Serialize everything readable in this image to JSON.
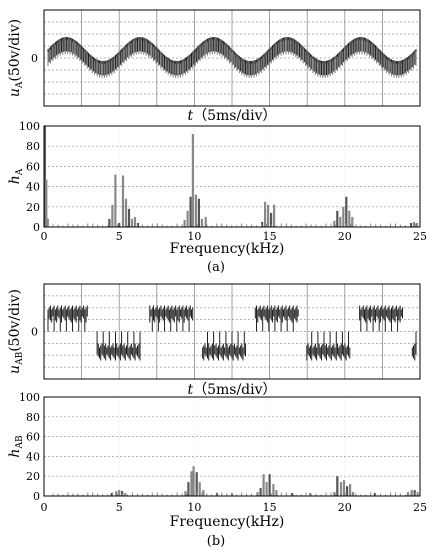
{
  "chart_data": [
    {
      "id": "a1",
      "type": "line",
      "ylabel": "uA(50v/div)",
      "ylabel_parts": {
        "italic": "u",
        "sub": "A",
        "rest": "(50v/div)"
      },
      "xlabel": "t（5ms/div）",
      "xlabel_parts": {
        "italic": "t",
        "rest": "（5ms/div）"
      },
      "y_tick_labels": [
        "0"
      ],
      "x_divisions": 10,
      "y_divisions": 8,
      "grid": true,
      "waveform": {
        "kind": "pwm-sine",
        "fundamental_cycles": 5,
        "amplitude_div": 1,
        "band_div": 0.75
      }
    },
    {
      "id": "a2",
      "type": "bar",
      "ylabel": "hA",
      "ylabel_parts": {
        "italic": "h",
        "sub": "A"
      },
      "xlabel": "Frequency(kHz)",
      "xlim": [
        0,
        25
      ],
      "ylim": [
        0,
        100
      ],
      "x_ticks": [
        0,
        5,
        10,
        15,
        20,
        25
      ],
      "y_ticks": [
        0,
        20,
        40,
        60,
        80,
        100
      ],
      "grid": "horizontal-dashed",
      "x": [
        0.05,
        0.15,
        0.25,
        4.35,
        4.55,
        4.75,
        5.0,
        5.25,
        5.45,
        5.65,
        5.85,
        6.05,
        6.25,
        9.35,
        9.55,
        9.75,
        9.9,
        10.1,
        10.3,
        10.5,
        10.75,
        14.5,
        14.7,
        14.9,
        15.1,
        15.3,
        19.3,
        19.5,
        19.7,
        19.9,
        20.1,
        20.3,
        20.5,
        24.4,
        24.6,
        24.8
      ],
      "values": [
        100,
        47,
        8,
        8,
        22,
        52,
        4,
        51,
        28,
        18,
        8,
        10,
        4,
        7,
        16,
        30,
        92,
        32,
        28,
        8,
        10,
        5,
        25,
        22,
        14,
        22,
        6,
        16,
        10,
        20,
        30,
        16,
        10,
        4,
        5,
        4
      ]
    },
    {
      "id": "b1",
      "type": "line",
      "ylabel": "uAB(50v/div)",
      "ylabel_parts": {
        "italic": "u",
        "sub": "AB",
        "rest": "(50v/div)"
      },
      "xlabel": "t（5ms/div）",
      "xlabel_parts": {
        "italic": "t",
        "rest": "（5ms/div）"
      },
      "y_tick_labels": [
        "0"
      ],
      "x_divisions": 10,
      "y_divisions": 8,
      "grid": true,
      "waveform": {
        "kind": "pwm-square",
        "fundamental_cycles": 3.5,
        "amplitude_div": 1.6
      }
    },
    {
      "id": "b2",
      "type": "bar",
      "ylabel": "hAB",
      "ylabel_parts": {
        "italic": "h",
        "sub": "AB"
      },
      "xlabel": "Frequency(kHz)",
      "xlim": [
        0,
        25
      ],
      "ylim": [
        0,
        100
      ],
      "x_ticks": [
        0,
        5,
        10,
        15,
        20,
        25
      ],
      "y_ticks": [
        0,
        20,
        40,
        60,
        80,
        100
      ],
      "grid": "horizontal-dashed",
      "x": [
        4.5,
        4.8,
        5.0,
        5.2,
        5.4,
        9.4,
        9.6,
        9.8,
        9.95,
        10.15,
        10.35,
        10.6,
        11.5,
        12.5,
        14.2,
        14.4,
        14.6,
        14.8,
        15.0,
        15.25,
        15.45,
        16.5,
        17.7,
        19.3,
        19.5,
        19.75,
        19.95,
        20.15,
        20.35,
        20.55,
        22.0,
        24.2,
        24.45,
        24.65,
        24.85
      ],
      "values": [
        3,
        5,
        6,
        5,
        3,
        5,
        14,
        25,
        30,
        24,
        14,
        6,
        3,
        3,
        4,
        8,
        22,
        14,
        22,
        12,
        6,
        3,
        3,
        4,
        20,
        14,
        16,
        10,
        12,
        4,
        3,
        4,
        6,
        6,
        4
      ]
    }
  ],
  "captions": {
    "a": "(a)",
    "b": "(b)"
  }
}
